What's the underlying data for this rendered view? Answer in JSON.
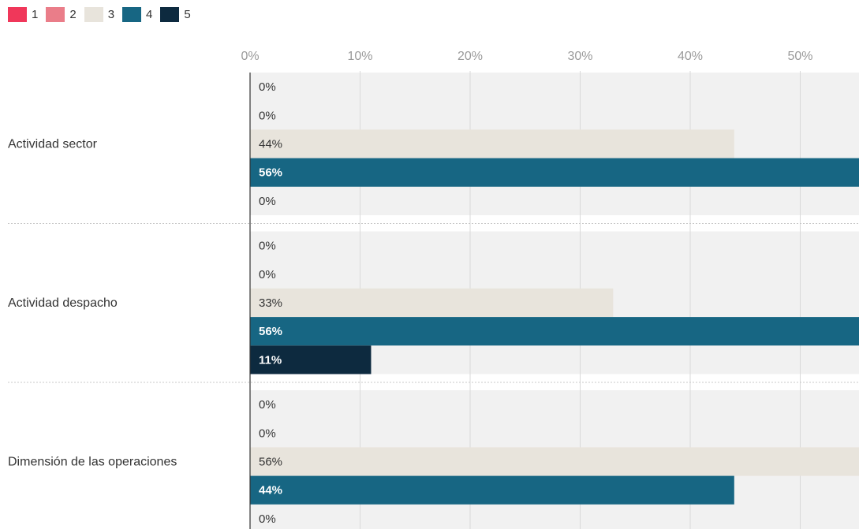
{
  "colors": {
    "series": [
      "#f0375a",
      "#ea7d89",
      "#e8e4dc",
      "#176683",
      "#0d2a3f"
    ],
    "band": "#f1f1f1",
    "grid": "#d9d9d9",
    "axis": "#333333",
    "label_dark": "#333333",
    "label_light": "#ffffff"
  },
  "chart_data": {
    "type": "bar",
    "orientation": "horizontal",
    "categories": [
      "Actividad sector",
      "Actividad despacho",
      "Dimensión de las operaciones"
    ],
    "series": [
      {
        "name": "1",
        "values": [
          0,
          0,
          0
        ]
      },
      {
        "name": "2",
        "values": [
          0,
          0,
          0
        ]
      },
      {
        "name": "3",
        "values": [
          44,
          33,
          56
        ]
      },
      {
        "name": "4",
        "values": [
          56,
          56,
          44
        ]
      },
      {
        "name": "5",
        "values": [
          0,
          11,
          0
        ]
      }
    ],
    "x_ticks": [
      "0%",
      "10%",
      "20%",
      "30%",
      "40%",
      "50%"
    ],
    "xlim": [
      0,
      55
    ],
    "unit": "%",
    "grid": true,
    "legend_position": "top-left"
  }
}
